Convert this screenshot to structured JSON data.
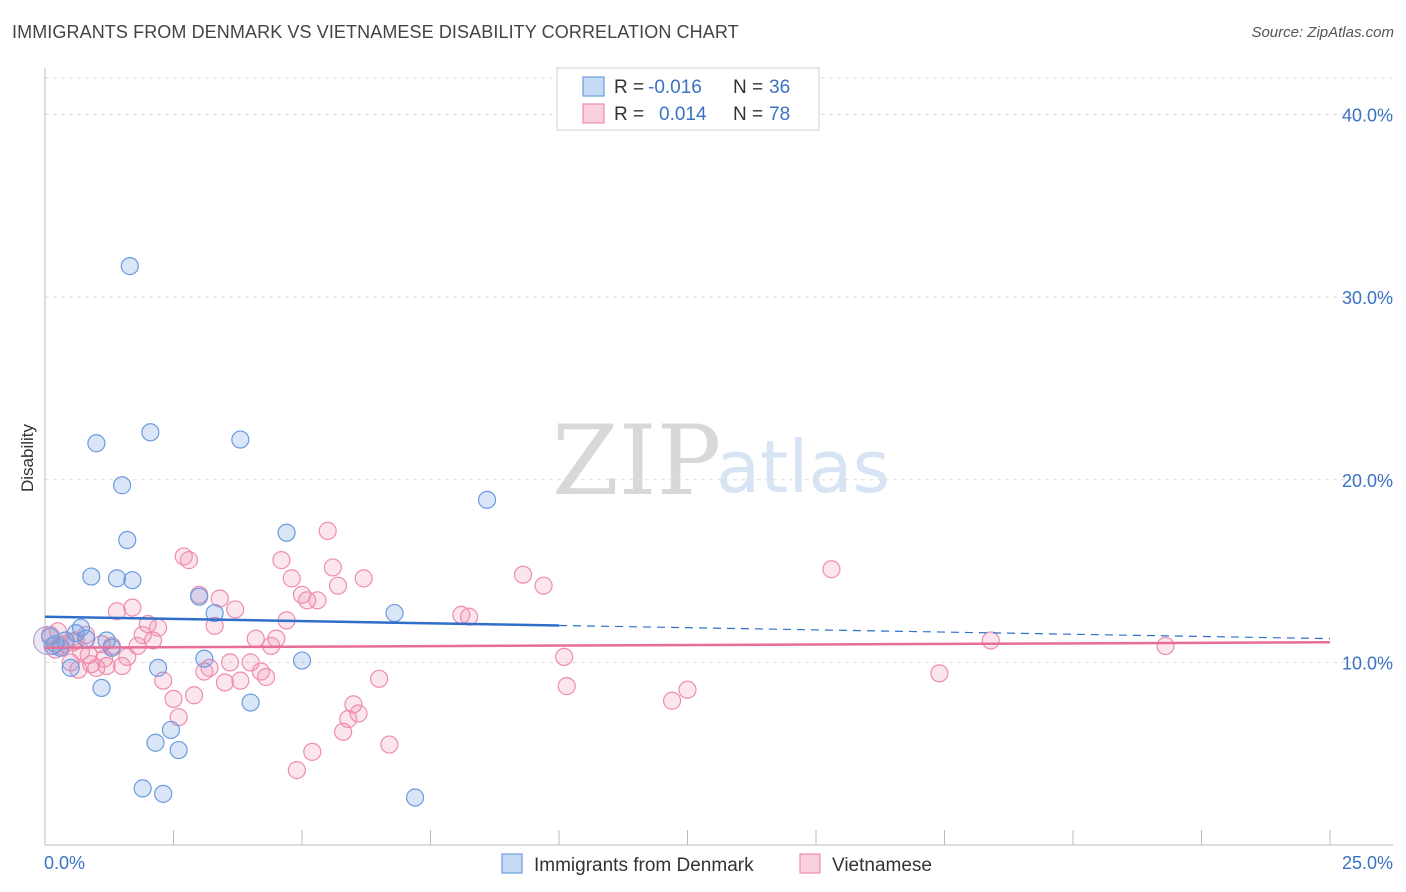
{
  "title": "IMMIGRANTS FROM DENMARK VS VIETNAMESE DISABILITY CORRELATION CHART",
  "source": "Source: ZipAtlas.com",
  "watermark": {
    "zip": "ZIP",
    "atlas": "atlas"
  },
  "legend": {
    "rows": [
      {
        "r_label": "R =",
        "r_value": "-0.016",
        "n_label": "N =",
        "n_value": "36"
      },
      {
        "r_label": "R =",
        "r_value": "0.014",
        "n_label": "N =",
        "n_value": "78"
      }
    ]
  },
  "bottom_legend": [
    "Immigrants from Denmark",
    "Vietnamese"
  ],
  "chart_data": {
    "type": "scatter",
    "title": "IMMIGRANTS FROM DENMARK VS VIETNAMESE DISABILITY CORRELATION CHART",
    "xlabel": "",
    "ylabel": "Disability",
    "xlim": [
      0,
      25
    ],
    "ylim": [
      0,
      42
    ],
    "x_tick_labels": [
      "0.0%",
      "25.0%"
    ],
    "y_ticks": [
      10,
      20,
      30,
      40
    ],
    "y_tick_labels": [
      "10.0%",
      "20.0%",
      "30.0%",
      "40.0%"
    ],
    "grid": true,
    "colors": {
      "denmark": "#6a9be0",
      "vietnamese": "#f08cae",
      "denmark_line": "#2f6fca",
      "vietnamese_line": "#e86d99"
    },
    "series": [
      {
        "name": "Immigrants from Denmark",
        "trend": {
          "x": [
            0,
            25
          ],
          "y": [
            12.5,
            11.3
          ],
          "solid_until_x": 10
        },
        "points": [
          [
            0.1,
            11.4
          ],
          [
            0.2,
            11.0
          ],
          [
            0.3,
            10.8
          ],
          [
            0.4,
            11.2
          ],
          [
            0.5,
            9.7
          ],
          [
            0.6,
            11.6
          ],
          [
            0.7,
            11.9
          ],
          [
            0.8,
            11.3
          ],
          [
            0.9,
            14.7
          ],
          [
            1.0,
            22.0
          ],
          [
            1.1,
            8.6
          ],
          [
            1.2,
            11.2
          ],
          [
            1.3,
            10.8
          ],
          [
            1.4,
            14.6
          ],
          [
            1.5,
            19.7
          ],
          [
            1.6,
            16.7
          ],
          [
            1.65,
            31.7
          ],
          [
            1.7,
            14.5
          ],
          [
            1.9,
            3.1
          ],
          [
            2.05,
            22.6
          ],
          [
            2.15,
            5.6
          ],
          [
            2.2,
            9.7
          ],
          [
            2.3,
            2.8
          ],
          [
            2.45,
            6.3
          ],
          [
            2.6,
            5.2
          ],
          [
            3.0,
            13.6
          ],
          [
            3.1,
            10.2
          ],
          [
            3.3,
            12.7
          ],
          [
            3.8,
            22.2
          ],
          [
            4.0,
            7.8
          ],
          [
            4.7,
            17.1
          ],
          [
            5.0,
            10.1
          ],
          [
            6.8,
            12.7
          ],
          [
            7.2,
            2.6
          ],
          [
            8.6,
            18.9
          ],
          [
            0.15,
            10.9
          ]
        ]
      },
      {
        "name": "Vietnamese",
        "trend": {
          "x": [
            0,
            25
          ],
          "y": [
            10.8,
            11.1
          ]
        },
        "points": [
          [
            0.1,
            11.5
          ],
          [
            0.2,
            10.7
          ],
          [
            0.3,
            10.9
          ],
          [
            0.4,
            11.0
          ],
          [
            0.5,
            10.0
          ],
          [
            0.6,
            11.2
          ],
          [
            0.7,
            10.6
          ],
          [
            0.8,
            11.5
          ],
          [
            0.9,
            9.9
          ],
          [
            1.0,
            9.7
          ],
          [
            1.1,
            11.0
          ],
          [
            1.2,
            9.8
          ],
          [
            1.3,
            10.9
          ],
          [
            1.4,
            12.8
          ],
          [
            1.5,
            9.8
          ],
          [
            1.6,
            10.3
          ],
          [
            1.7,
            13.0
          ],
          [
            1.8,
            10.9
          ],
          [
            1.9,
            11.5
          ],
          [
            2.0,
            12.1
          ],
          [
            2.1,
            11.2
          ],
          [
            2.2,
            11.9
          ],
          [
            2.3,
            9.0
          ],
          [
            2.5,
            8.0
          ],
          [
            2.6,
            7.0
          ],
          [
            2.7,
            15.8
          ],
          [
            2.8,
            15.6
          ],
          [
            2.9,
            8.2
          ],
          [
            3.0,
            13.7
          ],
          [
            3.1,
            9.5
          ],
          [
            3.2,
            9.7
          ],
          [
            3.3,
            12.0
          ],
          [
            3.4,
            13.5
          ],
          [
            3.5,
            8.9
          ],
          [
            3.6,
            10.0
          ],
          [
            3.7,
            12.9
          ],
          [
            3.8,
            9.0
          ],
          [
            4.0,
            10.0
          ],
          [
            4.1,
            11.3
          ],
          [
            4.2,
            9.5
          ],
          [
            4.3,
            9.2
          ],
          [
            4.4,
            10.9
          ],
          [
            4.5,
            11.3
          ],
          [
            4.6,
            15.6
          ],
          [
            4.7,
            12.3
          ],
          [
            4.8,
            14.6
          ],
          [
            4.9,
            4.1
          ],
          [
            5.0,
            13.7
          ],
          [
            5.1,
            13.4
          ],
          [
            5.2,
            5.1
          ],
          [
            5.3,
            13.4
          ],
          [
            5.5,
            17.2
          ],
          [
            5.6,
            15.2
          ],
          [
            5.7,
            14.2
          ],
          [
            5.8,
            6.2
          ],
          [
            5.9,
            6.9
          ],
          [
            6.0,
            7.7
          ],
          [
            6.1,
            7.2
          ],
          [
            6.2,
            14.6
          ],
          [
            6.5,
            9.1
          ],
          [
            6.7,
            5.5
          ],
          [
            8.1,
            12.6
          ],
          [
            8.25,
            12.5
          ],
          [
            9.3,
            14.8
          ],
          [
            9.7,
            14.2
          ],
          [
            10.1,
            10.3
          ],
          [
            10.15,
            8.7
          ],
          [
            12.2,
            7.9
          ],
          [
            12.5,
            8.5
          ],
          [
            15.3,
            15.1
          ],
          [
            17.4,
            9.4
          ],
          [
            18.4,
            11.2
          ],
          [
            21.8,
            10.9
          ],
          [
            0.25,
            11.7
          ],
          [
            0.55,
            11.1
          ],
          [
            0.85,
            10.4
          ],
          [
            1.15,
            10.2
          ],
          [
            0.65,
            9.6
          ]
        ]
      }
    ]
  }
}
